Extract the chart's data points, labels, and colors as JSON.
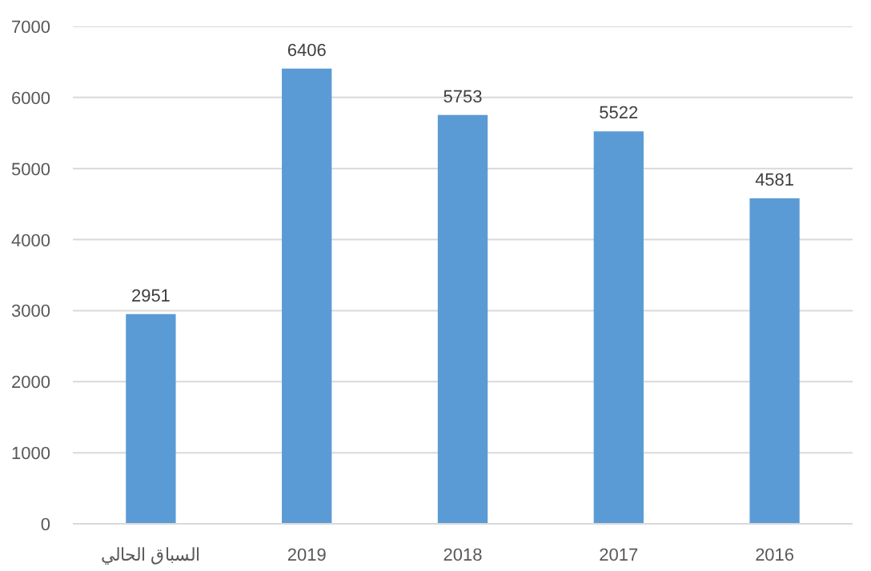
{
  "chart_data": {
    "type": "bar",
    "categories": [
      "السباق الحالي",
      "2019",
      "2018",
      "2017",
      "2016"
    ],
    "values": [
      2951,
      6406,
      5753,
      5522,
      4581
    ],
    "color": "#5b9bd5",
    "ylim": [
      0,
      7000
    ],
    "yticks": [
      0,
      1000,
      2000,
      3000,
      4000,
      5000,
      6000,
      7000
    ],
    "grid": "y",
    "data_labels": true
  }
}
